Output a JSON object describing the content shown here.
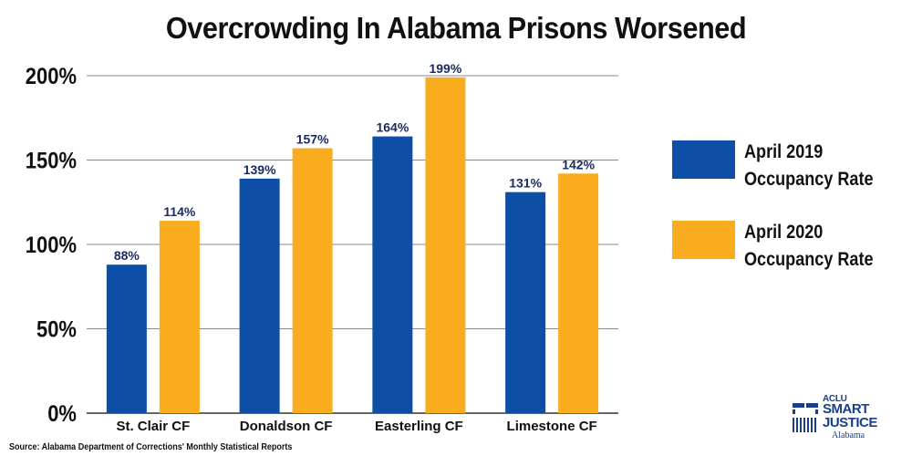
{
  "chart_data": {
    "type": "bar",
    "title": "Overcrowding In Alabama Prisons Worsened",
    "categories": [
      "St. Clair CF",
      "Donaldson CF",
      "Easterling CF",
      "Limestone CF"
    ],
    "series": [
      {
        "name": "April 2019 Occupancy Rate",
        "legend_lines": [
          "April 2019",
          "Occupancy Rate"
        ],
        "values": [
          88,
          139,
          164,
          131
        ],
        "labels": [
          "88%",
          "139%",
          "164%",
          "131%"
        ],
        "color": "#0d4fa6"
      },
      {
        "name": "April 2020 Occupancy Rate",
        "legend_lines": [
          "April 2020",
          "Occupancy Rate"
        ],
        "values": [
          114,
          157,
          199,
          142
        ],
        "labels": [
          "114%",
          "157%",
          "199%",
          "142%"
        ],
        "color": "#f9ac1e"
      }
    ],
    "ylim": [
      0,
      200
    ],
    "yticks": [
      0,
      50,
      100,
      150,
      200
    ],
    "ytick_labels": [
      "0%",
      "50%",
      "100%",
      "150%",
      "200%"
    ],
    "xlabel": "",
    "ylabel": "",
    "grid": true,
    "legend_position": "right"
  },
  "source": "Source: Alabama Department of Corrections' Monthly Statistical Reports",
  "logo": {
    "aclu": "ACLU",
    "smart": "SMART",
    "justice": "JUSTICE",
    "state": "Alabama"
  },
  "colors": {
    "label_text": "#1a2a5e",
    "grid": "#8a8a8a",
    "brand": "#1a3e8c"
  }
}
